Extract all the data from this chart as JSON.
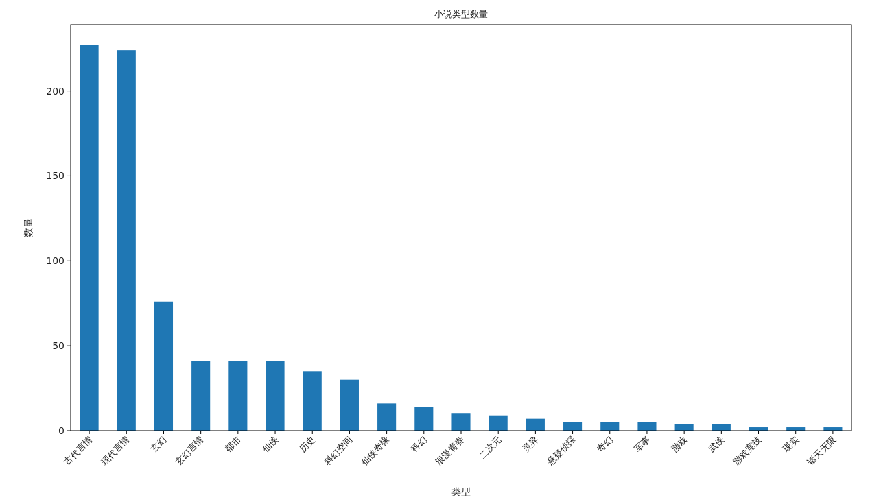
{
  "chart_data": {
    "type": "bar",
    "title": "小说类型数量",
    "xlabel": "类型",
    "ylabel": "数量",
    "categories": [
      "古代言情",
      "现代言情",
      "玄幻",
      "玄幻言情",
      "都市",
      "仙侠",
      "历史",
      "科幻空间",
      "仙侠奇缘",
      "科幻",
      "浪漫青春",
      "二次元",
      "灵异",
      "悬疑侦探",
      "奇幻",
      "军事",
      "游戏",
      "武侠",
      "游戏竞技",
      "现实",
      "诸天无限"
    ],
    "values": [
      227,
      224,
      76,
      41,
      41,
      41,
      35,
      30,
      16,
      14,
      10,
      9,
      7,
      5,
      5,
      5,
      4,
      4,
      2,
      2,
      2
    ],
    "color": "#1f77b4",
    "ylim": [
      0,
      239
    ],
    "yticks": [
      0,
      50,
      100,
      150,
      200
    ]
  }
}
